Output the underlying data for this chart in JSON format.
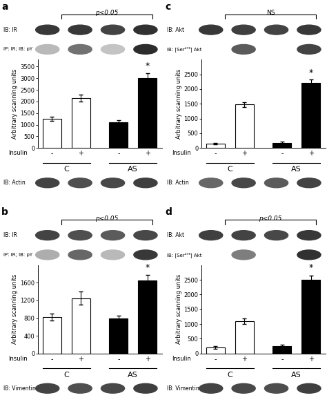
{
  "panels": [
    {
      "label": "a",
      "bar_values": [
        1250,
        2150,
        1100,
        3000
      ],
      "bar_errors": [
        100,
        150,
        80,
        200
      ],
      "bar_colors": [
        "white",
        "white",
        "black",
        "black"
      ],
      "ylim": [
        0,
        3800
      ],
      "yticks": [
        0,
        500,
        1000,
        1500,
        2000,
        2500,
        3000,
        3500
      ],
      "significance": "p<0.05",
      "wb_label1": "IB: IR",
      "wb_label2": "IP: IR; IB: pY",
      "loading_label": "IB: Actin",
      "star_bar": 3,
      "wb1_intensities": [
        0.85,
        0.85,
        0.8,
        0.88
      ],
      "wb2_intensities": [
        0.3,
        0.6,
        0.25,
        0.9
      ],
      "loading_intensities": [
        0.8,
        0.75,
        0.78,
        0.82
      ]
    },
    {
      "label": "b",
      "bar_values": [
        820,
        1250,
        800,
        1650
      ],
      "bar_errors": [
        80,
        150,
        60,
        120
      ],
      "bar_colors": [
        "white",
        "white",
        "black",
        "black"
      ],
      "ylim": [
        0,
        2000
      ],
      "yticks": [
        0,
        400,
        800,
        1200,
        1600
      ],
      "significance": "p<0.05",
      "wb_label1": "IB: IR",
      "wb_label2": "IP: IR; IB: pY",
      "loading_label": "IB: Vimentin",
      "star_bar": 3,
      "wb1_intensities": [
        0.8,
        0.75,
        0.7,
        0.78
      ],
      "wb2_intensities": [
        0.35,
        0.65,
        0.3,
        0.85
      ],
      "loading_intensities": [
        0.8,
        0.75,
        0.78,
        0.82
      ]
    },
    {
      "label": "c",
      "bar_values": [
        150,
        1480,
        180,
        2200
      ],
      "bar_errors": [
        30,
        80,
        40,
        120
      ],
      "bar_colors": [
        "white",
        "white",
        "black",
        "black"
      ],
      "ylim": [
        0,
        3000
      ],
      "yticks": [
        0,
        500,
        1000,
        1500,
        2000,
        2500
      ],
      "significance": "NS",
      "wb_label1": "IB: Akt",
      "wb_label2": "IB: [Ser⁴⁷³] Akt",
      "loading_label": "IB: Actin",
      "star_bar": 3,
      "wb1_intensities": [
        0.85,
        0.82,
        0.8,
        0.85
      ],
      "wb2_intensities": [
        0.05,
        0.7,
        0.05,
        0.8
      ],
      "loading_intensities": [
        0.65,
        0.78,
        0.7,
        0.8
      ]
    },
    {
      "label": "d",
      "bar_values": [
        200,
        1100,
        250,
        2500
      ],
      "bar_errors": [
        40,
        100,
        50,
        150
      ],
      "bar_colors": [
        "white",
        "white",
        "black",
        "black"
      ],
      "ylim": [
        0,
        3000
      ],
      "yticks": [
        0,
        500,
        1000,
        1500,
        2000,
        2500
      ],
      "significance": "p<0.05",
      "wb_label1": "IB: Akt",
      "wb_label2": "IB: [Ser⁴⁷³] Akt",
      "loading_label": "IB: Vimentin",
      "star_bar": 3,
      "wb1_intensities": [
        0.82,
        0.8,
        0.78,
        0.85
      ],
      "wb2_intensities": [
        0.05,
        0.55,
        0.05,
        0.88
      ],
      "loading_intensities": [
        0.8,
        0.78,
        0.76,
        0.82
      ]
    }
  ],
  "ylabel": "Arbitrary scanning units",
  "group_labels": [
    "C",
    "AS"
  ],
  "background_color": "#ffffff"
}
